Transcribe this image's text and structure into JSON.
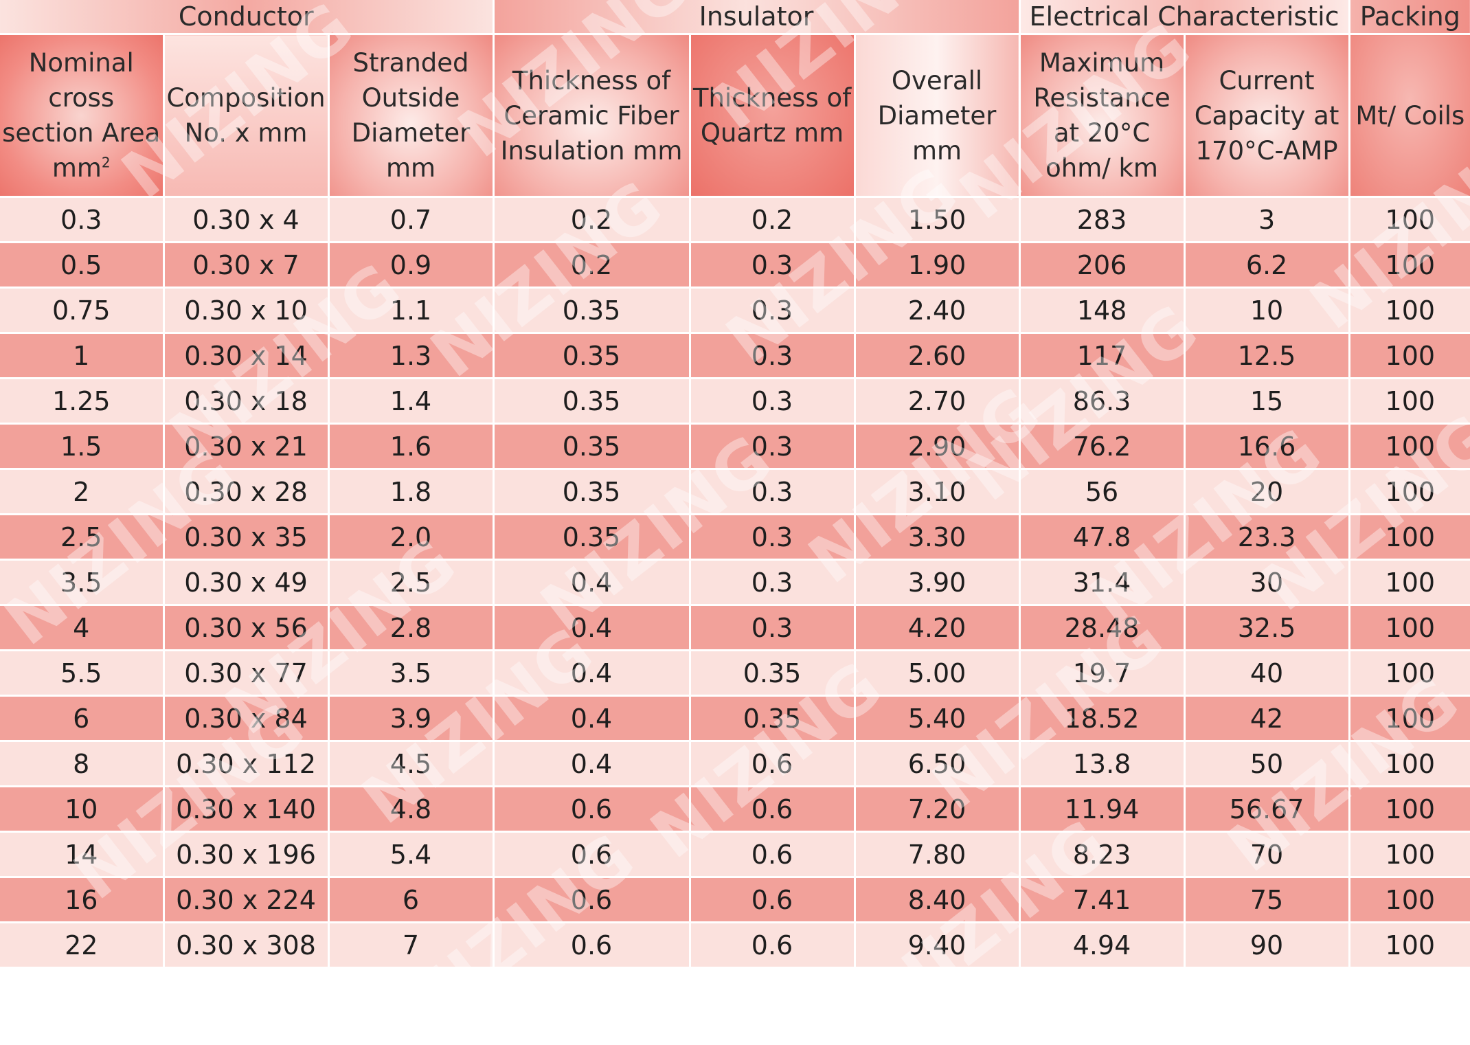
{
  "groups": [
    {
      "label": "Conductor"
    },
    {
      "label": "Insulator"
    },
    {
      "label": "Electrical Characteristic"
    },
    {
      "label": "Packing"
    }
  ],
  "headers": [
    {
      "text": "Nominal cross section Area mm",
      "sup": "2"
    },
    {
      "text": "Composition No. x mm"
    },
    {
      "text": "Stranded Outside Diameter mm"
    },
    {
      "text": "Thickness of Ceramic Fiber Insulation mm"
    },
    {
      "text": "Thickness of Quartz mm"
    },
    {
      "text": "Overall Diameter mm"
    },
    {
      "text": "Maximum Resistance at 20°C ohm/ km"
    },
    {
      "text": "Current Capacity at 170°C-AMP"
    },
    {
      "text": "Mt/ Coils"
    }
  ],
  "rows": [
    [
      "0.3",
      "0.30 x 4",
      "0.7",
      "0.2",
      "0.2",
      "1.50",
      "283",
      "3",
      "100"
    ],
    [
      "0.5",
      "0.30 x 7",
      "0.9",
      "0.2",
      "0.3",
      "1.90",
      "206",
      "6.2",
      "100"
    ],
    [
      "0.75",
      "0.30 x 10",
      "1.1",
      "0.35",
      "0.3",
      "2.40",
      "148",
      "10",
      "100"
    ],
    [
      "1",
      "0.30 x 14",
      "1.3",
      "0.35",
      "0.3",
      "2.60",
      "117",
      "12.5",
      "100"
    ],
    [
      "1.25",
      "0.30 x 18",
      "1.4",
      "0.35",
      "0.3",
      "2.70",
      "86.3",
      "15",
      "100"
    ],
    [
      "1.5",
      "0.30 x 21",
      "1.6",
      "0.35",
      "0.3",
      "2.90",
      "76.2",
      "16.6",
      "100"
    ],
    [
      "2",
      "0.30 x 28",
      "1.8",
      "0.35",
      "0.3",
      "3.10",
      "56",
      "20",
      "100"
    ],
    [
      "2.5",
      "0.30 x 35",
      "2.0",
      "0.35",
      "0.3",
      "3.30",
      "47.8",
      "23.3",
      "100"
    ],
    [
      "3.5",
      "0.30 x 49",
      "2.5",
      "0.4",
      "0.3",
      "3.90",
      "31.4",
      "30",
      "100"
    ],
    [
      "4",
      "0.30 x 56",
      "2.8",
      "0.4",
      "0.3",
      "4.20",
      "28.48",
      "32.5",
      "100"
    ],
    [
      "5.5",
      "0.30 x 77",
      "3.5",
      "0.4",
      "0.35",
      "5.00",
      "19.7",
      "40",
      "100"
    ],
    [
      "6",
      "0.30 x 84",
      "3.9",
      "0.4",
      "0.35",
      "5.40",
      "18.52",
      "42",
      "100"
    ],
    [
      "8",
      "0.30 x 112",
      "4.5",
      "0.4",
      "0.6",
      "6.50",
      "13.8",
      "50",
      "100"
    ],
    [
      "10",
      "0.30 x 140",
      "4.8",
      "0.6",
      "0.6",
      "7.20",
      "11.94",
      "56.67",
      "100"
    ],
    [
      "14",
      "0.30 x 196",
      "5.4",
      "0.6",
      "0.6",
      "7.80",
      "8.23",
      "70",
      "100"
    ],
    [
      "16",
      "0.30 x 224",
      "6",
      "0.6",
      "0.6",
      "8.40",
      "7.41",
      "75",
      "100"
    ],
    [
      "22",
      "0.30 x 308",
      "7",
      "0.6",
      "0.6",
      "9.40",
      "4.94",
      "90",
      "100"
    ]
  ],
  "watermark": "NIZING"
}
